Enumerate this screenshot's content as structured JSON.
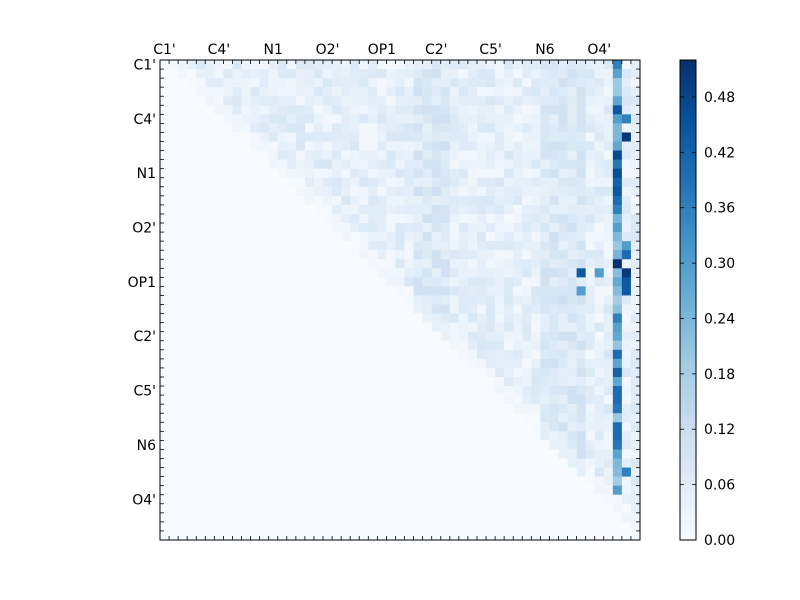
{
  "chart_data": {
    "type": "heatmap",
    "title": "",
    "grid_size": 53,
    "row_labels": [
      "C1'",
      "C4'",
      "N1",
      "O2'",
      "OP1",
      "C2'",
      "C5'",
      "N6",
      "O4'"
    ],
    "col_labels": [
      "C1'",
      "C4'",
      "N1",
      "O2'",
      "OP1",
      "C2'",
      "C5'",
      "N6",
      "O4'"
    ],
    "label_every": 6,
    "value_range": [
      0.0,
      0.52
    ],
    "matrix_shape": "upper triangular: cells below the diagonal are 0",
    "colorbar": {
      "ticks": [
        "0.00",
        "0.06",
        "0.12",
        "0.18",
        "0.24",
        "0.30",
        "0.36",
        "0.42",
        "0.48"
      ],
      "tick_values": [
        0.0,
        0.06,
        0.12,
        0.18,
        0.24,
        0.3,
        0.36,
        0.42,
        0.48
      ]
    },
    "colormap": "Blues",
    "colormap_stops": [
      "#f7fbff",
      "#deebf7",
      "#c6dbef",
      "#9ecae1",
      "#6baed6",
      "#4292c6",
      "#2171b5",
      "#08519c",
      "#08306b"
    ],
    "notable_cells": [
      {
        "row": 0,
        "col": 50,
        "value": 0.36
      },
      {
        "row": 5,
        "col": 50,
        "value": 0.44
      },
      {
        "row": 6,
        "col": 51,
        "value": 0.36
      },
      {
        "row": 8,
        "col": 51,
        "value": 0.5
      },
      {
        "row": 10,
        "col": 50,
        "value": 0.47
      },
      {
        "row": 11,
        "col": 50,
        "value": 0.38
      },
      {
        "row": 12,
        "col": 50,
        "value": 0.46
      },
      {
        "row": 13,
        "col": 50,
        "value": 0.42
      },
      {
        "row": 14,
        "col": 50,
        "value": 0.44
      },
      {
        "row": 15,
        "col": 50,
        "value": 0.4
      },
      {
        "row": 16,
        "col": 50,
        "value": 0.36
      },
      {
        "row": 20,
        "col": 50,
        "value": 0.2
      },
      {
        "row": 20,
        "col": 51,
        "value": 0.3
      },
      {
        "row": 21,
        "col": 51,
        "value": 0.4
      },
      {
        "row": 22,
        "col": 50,
        "value": 0.52
      },
      {
        "row": 23,
        "col": 46,
        "value": 0.44
      },
      {
        "row": 23,
        "col": 48,
        "value": 0.3
      },
      {
        "row": 23,
        "col": 51,
        "value": 0.5
      },
      {
        "row": 24,
        "col": 51,
        "value": 0.44
      },
      {
        "row": 25,
        "col": 46,
        "value": 0.3
      },
      {
        "row": 25,
        "col": 51,
        "value": 0.44
      },
      {
        "row": 28,
        "col": 50,
        "value": 0.36
      },
      {
        "row": 32,
        "col": 50,
        "value": 0.4
      },
      {
        "row": 34,
        "col": 50,
        "value": 0.42
      },
      {
        "row": 36,
        "col": 50,
        "value": 0.4
      },
      {
        "row": 37,
        "col": 50,
        "value": 0.4
      },
      {
        "row": 38,
        "col": 50,
        "value": 0.38
      },
      {
        "row": 40,
        "col": 50,
        "value": 0.4
      },
      {
        "row": 41,
        "col": 50,
        "value": 0.4
      },
      {
        "row": 42,
        "col": 50,
        "value": 0.38
      },
      {
        "row": 45,
        "col": 51,
        "value": 0.36
      },
      {
        "row": 47,
        "col": 50,
        "value": 0.3
      }
    ]
  }
}
